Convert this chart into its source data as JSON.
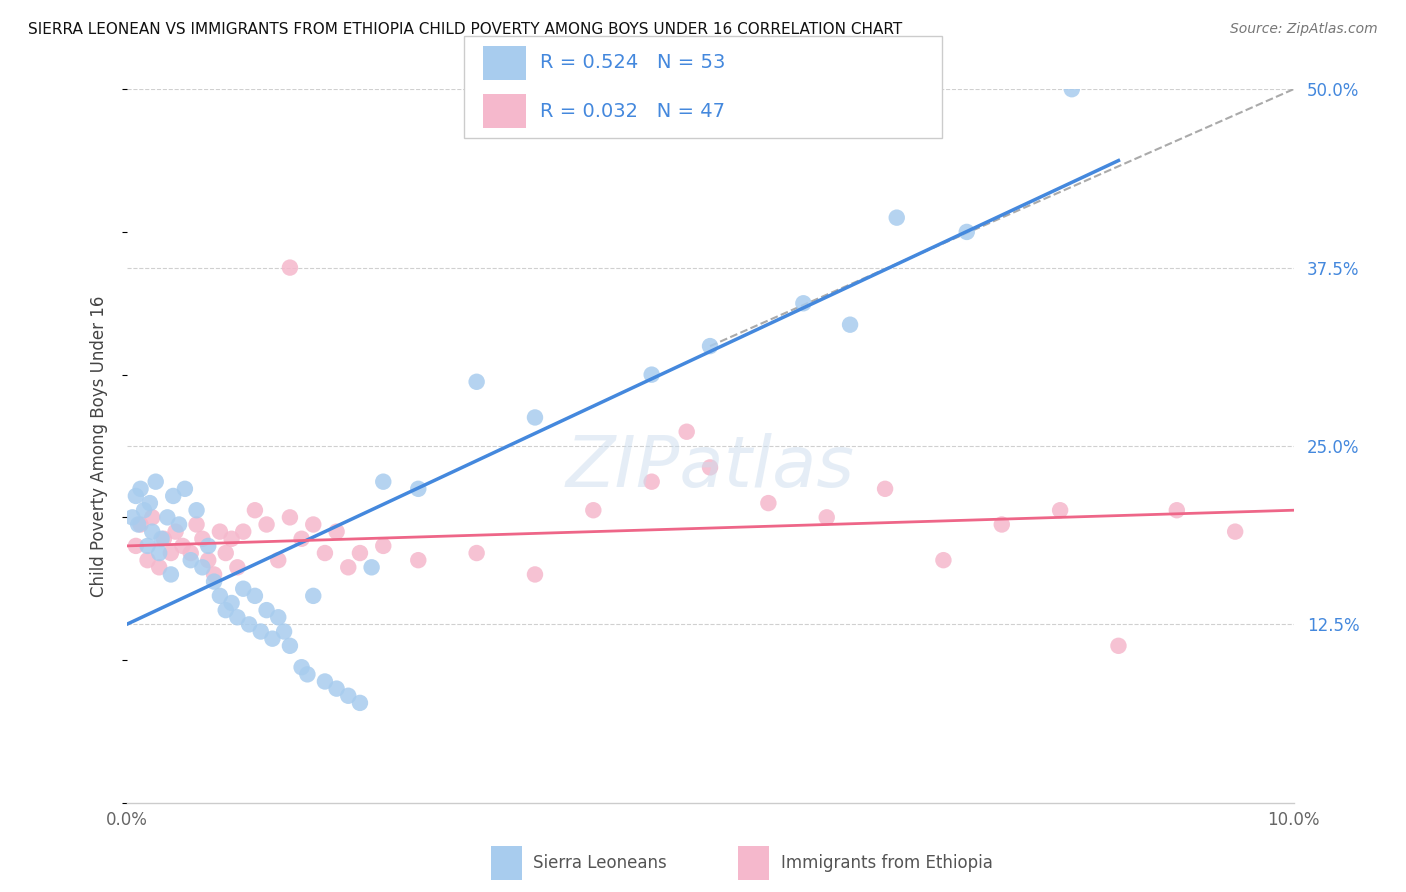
{
  "title": "SIERRA LEONEAN VS IMMIGRANTS FROM ETHIOPIA CHILD POVERTY AMONG BOYS UNDER 16 CORRELATION CHART",
  "source": "Source: ZipAtlas.com",
  "ylabel": "Child Poverty Among Boys Under 16",
  "xlim": [
    0.0,
    10.0
  ],
  "ylim": [
    0.0,
    50.0
  ],
  "yticks": [
    0.0,
    12.5,
    25.0,
    37.5,
    50.0
  ],
  "blue_R": 0.524,
  "blue_N": 53,
  "pink_R": 0.032,
  "pink_N": 47,
  "blue_color": "#A8CCEE",
  "pink_color": "#F5B8CC",
  "blue_line_color": "#4488DD",
  "pink_line_color": "#EE6688",
  "legend_label_blue": "Sierra Leoneans",
  "legend_label_pink": "Immigrants from Ethiopia",
  "blue_scatter_x": [
    0.05,
    0.08,
    0.1,
    0.12,
    0.15,
    0.18,
    0.2,
    0.22,
    0.25,
    0.28,
    0.3,
    0.35,
    0.38,
    0.4,
    0.45,
    0.5,
    0.55,
    0.6,
    0.65,
    0.7,
    0.75,
    0.8,
    0.85,
    0.9,
    0.95,
    1.0,
    1.05,
    1.1,
    1.15,
    1.2,
    1.25,
    1.3,
    1.35,
    1.4,
    1.5,
    1.55,
    1.6,
    1.7,
    1.8,
    1.9,
    2.0,
    2.1,
    2.2,
    2.5,
    3.0,
    3.5,
    4.5,
    5.0,
    5.8,
    6.2,
    6.6,
    7.2,
    8.1
  ],
  "blue_scatter_y": [
    20.0,
    21.5,
    19.5,
    22.0,
    20.5,
    18.0,
    21.0,
    19.0,
    22.5,
    17.5,
    18.5,
    20.0,
    16.0,
    21.5,
    19.5,
    22.0,
    17.0,
    20.5,
    16.5,
    18.0,
    15.5,
    14.5,
    13.5,
    14.0,
    13.0,
    15.0,
    12.5,
    14.5,
    12.0,
    13.5,
    11.5,
    13.0,
    12.0,
    11.0,
    9.5,
    9.0,
    14.5,
    8.5,
    8.0,
    7.5,
    7.0,
    16.5,
    22.5,
    22.0,
    29.5,
    27.0,
    30.0,
    32.0,
    35.0,
    33.5,
    41.0,
    40.0,
    50.0
  ],
  "pink_scatter_x": [
    0.08,
    0.12,
    0.18,
    0.22,
    0.28,
    0.32,
    0.38,
    0.42,
    0.48,
    0.55,
    0.6,
    0.65,
    0.7,
    0.75,
    0.8,
    0.85,
    0.9,
    0.95,
    1.0,
    1.1,
    1.2,
    1.3,
    1.4,
    1.5,
    1.6,
    1.7,
    1.8,
    1.9,
    2.0,
    2.2,
    2.5,
    3.0,
    3.5,
    4.0,
    4.5,
    5.0,
    5.5,
    6.0,
    6.5,
    7.0,
    7.5,
    8.0,
    8.5,
    9.0,
    9.5,
    4.8,
    1.4
  ],
  "pink_scatter_y": [
    18.0,
    19.5,
    17.0,
    20.0,
    16.5,
    18.5,
    17.5,
    19.0,
    18.0,
    17.5,
    19.5,
    18.5,
    17.0,
    16.0,
    19.0,
    17.5,
    18.5,
    16.5,
    19.0,
    20.5,
    19.5,
    17.0,
    20.0,
    18.5,
    19.5,
    17.5,
    19.0,
    16.5,
    17.5,
    18.0,
    17.0,
    17.5,
    16.0,
    20.5,
    22.5,
    23.5,
    21.0,
    20.0,
    22.0,
    17.0,
    19.5,
    20.5,
    11.0,
    20.5,
    19.0,
    26.0,
    37.5
  ],
  "blue_line_x0": 0.0,
  "blue_line_x1": 8.5,
  "blue_line_y0": 12.5,
  "blue_line_y1": 45.0,
  "pink_line_x0": 0.0,
  "pink_line_x1": 10.0,
  "pink_line_y0": 18.0,
  "pink_line_y1": 20.5,
  "ref_line_x0": 5.0,
  "ref_line_x1": 10.0,
  "ref_line_y0": 32.0,
  "ref_line_y1": 50.0,
  "watermark_text": "ZIPatlas",
  "bg_color": "#ffffff",
  "grid_color": "#d0d0d0",
  "title_fontsize": 11,
  "axis_label_color": "#555555",
  "tick_label_color": "#4488DD"
}
